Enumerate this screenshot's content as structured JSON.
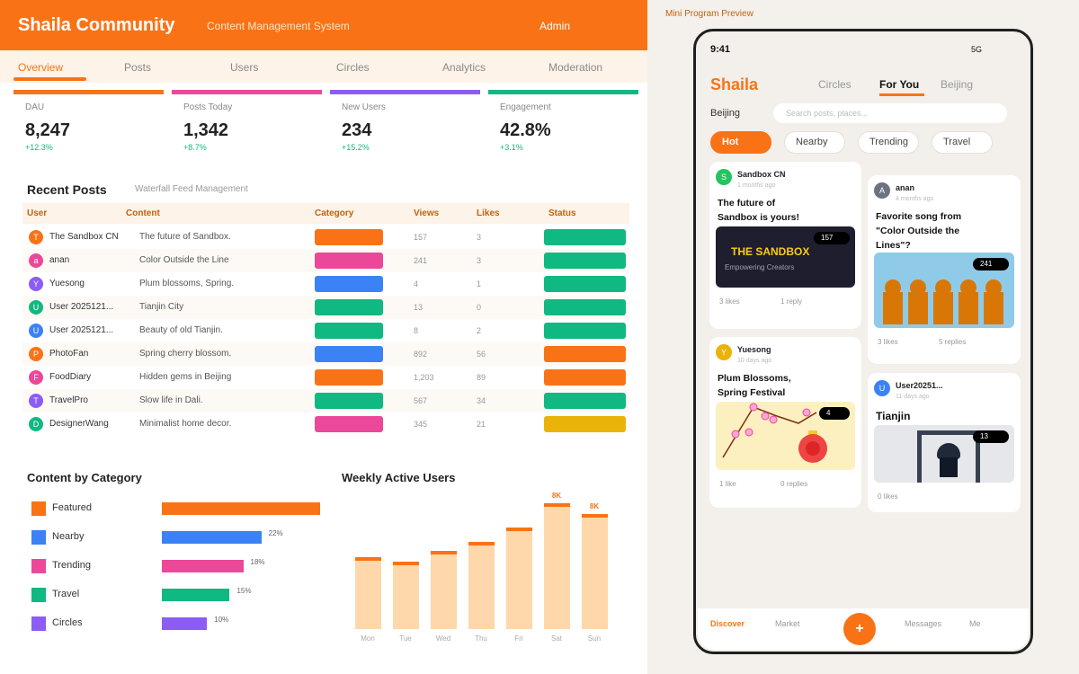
{
  "header": {
    "title": "Shaila Community",
    "subtitle": "Content Management System",
    "user": "Admin"
  },
  "nav": {
    "tabs": [
      "Overview",
      "Posts",
      "Users",
      "Circles",
      "Analytics",
      "Moderation"
    ],
    "active": 0
  },
  "stats": [
    {
      "label": "DAU",
      "value": "8,247",
      "change": "+12.3%",
      "color": "#f97316"
    },
    {
      "label": "Posts Today",
      "value": "1,342",
      "change": "+8.7%",
      "color": "#ec4899"
    },
    {
      "label": "New Users",
      "value": "234",
      "change": "+15.2%",
      "color": "#8b5cf6"
    },
    {
      "label": "Engagement",
      "value": "42.8%",
      "change": "+3.1%",
      "color": "#10b981"
    }
  ],
  "recent_posts": {
    "title": "Recent Posts",
    "subtitle": "Waterfall Feed Management",
    "columns": [
      "User",
      "Content",
      "Category",
      "Views",
      "Likes",
      "Status"
    ],
    "rows": [
      {
        "initial": "T",
        "avatar_color": "#f97316",
        "user": "The Sandbox CN",
        "content": "The future of Sandbox.",
        "category_color": "#f97316",
        "views": 157,
        "likes": 3,
        "status_color": "#10b981"
      },
      {
        "initial": "a",
        "avatar_color": "#ec4899",
        "user": "anan",
        "content": "Color Outside the Line",
        "category_color": "#ec4899",
        "views": 241,
        "likes": 3,
        "status_color": "#10b981"
      },
      {
        "initial": "Y",
        "avatar_color": "#8b5cf6",
        "user": "Yuesong",
        "content": "Plum blossoms, Spring.",
        "category_color": "#3b82f6",
        "views": 4,
        "likes": 1,
        "status_color": "#10b981"
      },
      {
        "initial": "U",
        "avatar_color": "#10b981",
        "user": "User 2025121...",
        "content": "Tianjin City",
        "category_color": "#10b981",
        "views": 13,
        "likes": 0,
        "status_color": "#10b981"
      },
      {
        "initial": "U",
        "avatar_color": "#3b82f6",
        "user": "User 2025121...",
        "content": "Beauty of old Tianjin.",
        "category_color": "#10b981",
        "views": 8,
        "likes": 2,
        "status_color": "#10b981"
      },
      {
        "initial": "P",
        "avatar_color": "#f97316",
        "user": "PhotoFan",
        "content": "Spring cherry blossom.",
        "category_color": "#3b82f6",
        "views": 892,
        "likes": 56,
        "status_color": "#f97316"
      },
      {
        "initial": "F",
        "avatar_color": "#ec4899",
        "user": "FoodDiary",
        "content": "Hidden gems in Beijing",
        "category_color": "#f97316",
        "views": {
          "value": 1203,
          "label": "1,203"
        },
        "likes": 89,
        "status_color": "#f97316"
      },
      {
        "initial": "T",
        "avatar_color": "#8b5cf6",
        "user": "TravelPro",
        "content": "Slow life in Dali.",
        "category_color": "#10b981",
        "views": 567,
        "likes": 34,
        "status_color": "#10b981"
      },
      {
        "initial": "D",
        "avatar_color": "#10b981",
        "user": "DesignerWang",
        "content": "Minimalist home decor.",
        "category_color": "#ec4899",
        "views": 345,
        "likes": 21,
        "status_color": "#eab308"
      }
    ]
  },
  "chart_data": [
    {
      "type": "bar",
      "orientation": "horizontal",
      "title": "Content by Category",
      "categories": [
        "Featured",
        "Nearby",
        "Trending",
        "Travel",
        "Circles"
      ],
      "values": [
        35,
        22,
        18,
        15,
        10
      ],
      "value_labels": [
        null,
        "22%",
        "18%",
        "15%",
        "10%"
      ],
      "colors": [
        "#f97316",
        "#3b82f6",
        "#ec4899",
        "#10b981",
        "#8b5cf6"
      ],
      "xlim": [
        0,
        35
      ]
    },
    {
      "type": "bar",
      "title": "Weekly Active Users",
      "categories": [
        "Mon",
        "Tue",
        "Wed",
        "Thu",
        "Fri",
        "Sat",
        "Sun"
      ],
      "values": [
        4800,
        4500,
        5200,
        5800,
        6800,
        8400,
        7700
      ],
      "value_labels": [
        null,
        null,
        null,
        null,
        null,
        "8K",
        "8K"
      ],
      "color": "#fed7aa",
      "cap_color": "#f97316",
      "ylim": [
        0,
        9000
      ]
    }
  ],
  "preview": {
    "label": "Mini Program Preview",
    "status": {
      "time": "9:41",
      "network": "5G"
    },
    "brand": "Shaila",
    "tabs": [
      "Circles",
      "For You",
      "Beijing"
    ],
    "active_tab": 1,
    "location": "Beijing",
    "search_placeholder": "Search posts, places...",
    "chips": [
      "Hot",
      "Nearby",
      "Trending",
      "Travel"
    ],
    "active_chip": 0,
    "cards": [
      {
        "initial": "S",
        "avatar_color": "#22c55e",
        "user": "Sandbox CN",
        "time": "1 months ago",
        "title": "The future of Sandbox is yours!",
        "image_title": "THE SANDBOX",
        "image_subtitle": "Empowering Creators",
        "badge": "157",
        "likes": "3 likes",
        "replies": "1 reply"
      },
      {
        "initial": "Y",
        "avatar_color": "#eab308",
        "user": "Yuesong",
        "time": "10 days ago",
        "title": "Plum Blossoms, Spring Festival",
        "badge": "4",
        "likes": "1 like",
        "replies": "0 replies"
      },
      {
        "initial": "A",
        "avatar_color": "#6b7280",
        "user": "anan",
        "time": "4 months ago",
        "title": "Favorite song from \"Color Outside the Lines\"?",
        "badge": "241",
        "likes": "3 likes",
        "replies": "5 replies"
      },
      {
        "initial": "U",
        "avatar_color": "#3b82f6",
        "user": "User20251...",
        "time": "11 days ago",
        "title": "Tianjin",
        "badge": "13",
        "likes": "0 likes"
      }
    ],
    "bottom_nav": [
      "Discover",
      "Market",
      "+",
      "Messages",
      "Me"
    ],
    "active_nav": 0
  }
}
